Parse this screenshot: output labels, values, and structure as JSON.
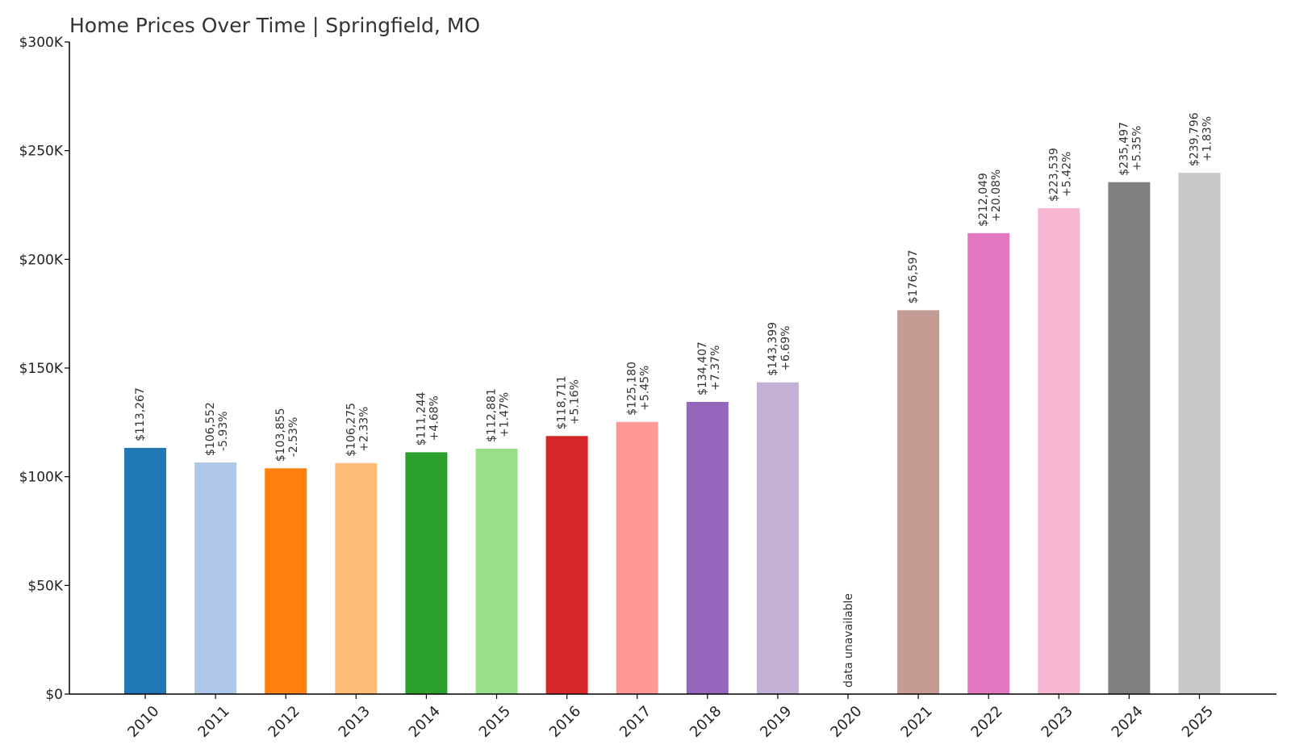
{
  "chart_data": {
    "type": "bar",
    "title": "Home Prices Over Time | Springfield, MO",
    "xlabel": "",
    "ylabel": "",
    "ylim": [
      0,
      300000
    ],
    "yticks": [
      0,
      50000,
      100000,
      150000,
      200000,
      250000,
      300000
    ],
    "ytick_labels": [
      "$0",
      "$50K",
      "$100K",
      "$150K",
      "$200K",
      "$250K",
      "$300K"
    ],
    "categories": [
      "2010",
      "2011",
      "2012",
      "2013",
      "2014",
      "2015",
      "2016",
      "2017",
      "2018",
      "2019",
      "2020",
      "2021",
      "2022",
      "2023",
      "2024",
      "2025"
    ],
    "values": [
      113267,
      106552,
      103855,
      106275,
      111244,
      112881,
      118711,
      125180,
      134407,
      143399,
      null,
      176597,
      212049,
      223539,
      235497,
      239796
    ],
    "value_labels": [
      "$113,267",
      "$106,552",
      "$103,855",
      "$106,275",
      "$111,244",
      "$112,881",
      "$118,711",
      "$125,180",
      "$134,407",
      "$143,399",
      "",
      "$176,597",
      "$212,049",
      "$223,539",
      "$235,497",
      "$239,796"
    ],
    "change_labels": [
      "",
      "-5.93%",
      "-2.53%",
      "+2.33%",
      "+4.68%",
      "+1.47%",
      "+5.16%",
      "+5.45%",
      "+7.37%",
      "+6.69%",
      "",
      "",
      "+20.08%",
      "+5.42%",
      "+5.35%",
      "+1.83%"
    ],
    "missing_label": "data unavailable",
    "colors": [
      "#1f77b4",
      "#aec7e8",
      "#ff7f0e",
      "#ffbb78",
      "#2ca02c",
      "#98df8a",
      "#d62728",
      "#ff9896",
      "#9467bd",
      "#c5b0d5",
      "#8c564b",
      "#c49c94",
      "#e377c2",
      "#f7b6d2",
      "#7f7f7f",
      "#c7c7c7"
    ],
    "grid": false,
    "legend": "none"
  }
}
